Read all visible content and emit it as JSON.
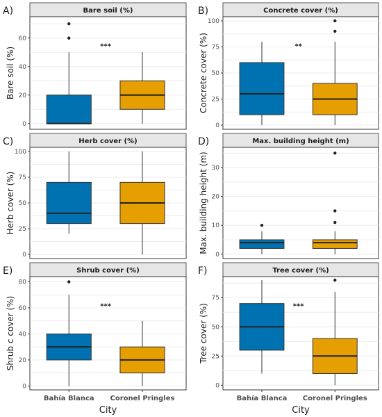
{
  "colors": {
    "bahia": "#0072b2",
    "coronel": "#e69f00",
    "strip": "#e6e6e6"
  },
  "x_axis_title": "City",
  "chart_data": [
    {
      "type": "box",
      "letter": "A)",
      "title": "Bare soil (%)",
      "ylabel": "Bare soil (%)",
      "ylim": [
        -4,
        75
      ],
      "yticks": [
        0,
        20,
        40,
        60
      ],
      "significance": "***",
      "categories": [
        "Bahía Blanca",
        "Coronel Pringles"
      ],
      "boxes": [
        {
          "name": "Bahía Blanca",
          "min": 0,
          "q1": 0,
          "median": 0,
          "q3": 20,
          "max": 50,
          "outliers": [
            60,
            70
          ]
        },
        {
          "name": "Coronel Pringles",
          "min": 0,
          "q1": 10,
          "median": 20,
          "q3": 30,
          "max": 50,
          "outliers": []
        }
      ]
    },
    {
      "type": "box",
      "letter": "B)",
      "title": "Concrete cover (%)",
      "ylabel": "Concrete cover (%)",
      "ylim": [
        -4,
        104
      ],
      "yticks": [
        0,
        25,
        50,
        75,
        100
      ],
      "significance": "**",
      "categories": [
        "Bahía Blanca",
        "Coronel Pringles"
      ],
      "boxes": [
        {
          "name": "Bahía Blanca",
          "min": 0,
          "q1": 10,
          "median": 30,
          "q3": 60,
          "max": 80,
          "outliers": []
        },
        {
          "name": "Coronel Pringles",
          "min": 0,
          "q1": 10,
          "median": 25,
          "q3": 40,
          "max": 80,
          "outliers": [
            90,
            100
          ]
        }
      ]
    },
    {
      "type": "box",
      "letter": "C)",
      "title": "Herb cover (%)",
      "ylabel": "Herb cover (%)",
      "ylim": [
        -4,
        104
      ],
      "yticks": [
        0,
        25,
        50,
        75,
        100
      ],
      "significance": "",
      "categories": [
        "Bahía Blanca",
        "Coronel Pringles"
      ],
      "boxes": [
        {
          "name": "Bahía Blanca",
          "min": 20,
          "q1": 30,
          "median": 40,
          "q3": 70,
          "max": 100,
          "outliers": []
        },
        {
          "name": "Coronel Pringles",
          "min": 0,
          "q1": 30,
          "median": 50,
          "q3": 70,
          "max": 100,
          "outliers": []
        }
      ]
    },
    {
      "type": "box",
      "letter": "D)",
      "title": "Max. building height (m)",
      "ylabel": "Max. building height (m)",
      "ylim": [
        -1.5,
        37
      ],
      "yticks": [
        0,
        10,
        20,
        30
      ],
      "significance": "",
      "categories": [
        "Bahía Blanca",
        "Coronel Pringles"
      ],
      "boxes": [
        {
          "name": "Bahía Blanca",
          "min": 0,
          "q1": 2,
          "median": 4,
          "q3": 5,
          "max": 8,
          "outliers": [
            10
          ]
        },
        {
          "name": "Coronel Pringles",
          "min": 0,
          "q1": 2,
          "median": 4,
          "q3": 5,
          "max": 8,
          "outliers": [
            11,
            15,
            35
          ]
        }
      ]
    },
    {
      "type": "box",
      "letter": "E)",
      "title": "Shrub cover (%)",
      "ylabel": "Shrub c cover (%)",
      "ylim": [
        -3,
        84
      ],
      "yticks": [
        0,
        20,
        40,
        60,
        80
      ],
      "significance": "***",
      "categories": [
        "Bahía Blanca",
        "Coronel Pringles"
      ],
      "boxes": [
        {
          "name": "Bahía Blanca",
          "min": 0,
          "q1": 20,
          "median": 30,
          "q3": 40,
          "max": 70,
          "outliers": [
            80
          ]
        },
        {
          "name": "Coronel Pringles",
          "min": 0,
          "q1": 10,
          "median": 20,
          "q3": 30,
          "max": 50,
          "outliers": []
        }
      ]
    },
    {
      "type": "box",
      "letter": "F)",
      "title": "Tree cover (%)",
      "ylabel": "Tree cover (%)",
      "ylim": [
        -4,
        93
      ],
      "yticks": [
        0,
        25,
        50,
        75
      ],
      "significance": "***",
      "categories": [
        "Bahía Blanca",
        "Coronel Pringles"
      ],
      "boxes": [
        {
          "name": "Bahía Blanca",
          "min": 10,
          "q1": 30,
          "median": 50,
          "q3": 70,
          "max": 90,
          "outliers": []
        },
        {
          "name": "Coronel Pringles",
          "min": 0,
          "q1": 10,
          "median": 25,
          "q3": 40,
          "max": 80,
          "outliers": [
            90
          ]
        }
      ]
    }
  ]
}
